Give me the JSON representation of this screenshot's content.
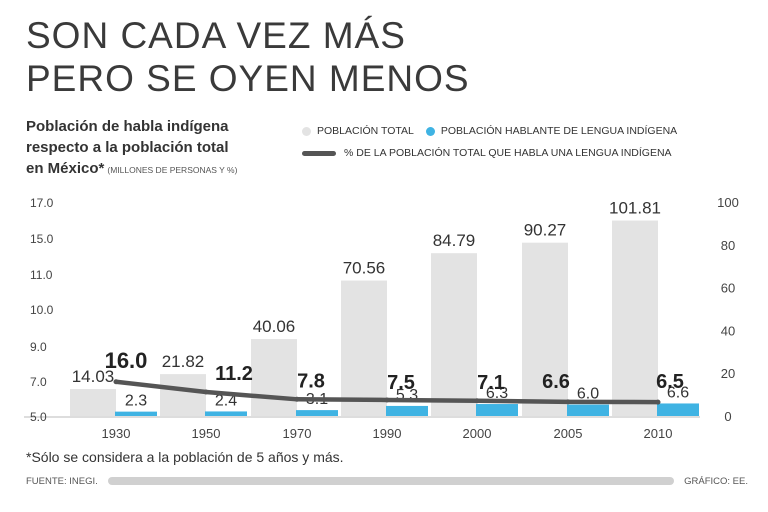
{
  "headline": [
    "SON CADA VEZ MÁS",
    "PERO SE OYEN MENOS"
  ],
  "subtitle": {
    "lines": [
      "Población de habla indígena",
      "respecto a la población total",
      "en México*"
    ],
    "units": "(MILLONES DE PERSONAS Y %)"
  },
  "legend": {
    "total": "POBLACIÓN TOTAL",
    "indigenous": "POBLACIÓN HABLANTE DE LENGUA INDÍGENA",
    "percent": "% DE LA POBLACIÓN TOTAL QUE HABLA UNA LENGUA INDÍGENA"
  },
  "colors": {
    "total": "#e3e3e3",
    "indigenous": "#3fb3e3",
    "line": "#555555",
    "axis": "#bbbbbb"
  },
  "chart_data": {
    "type": "bar",
    "categories": [
      "1930",
      "1950",
      "1970",
      "1990",
      "2000",
      "2005",
      "2010"
    ],
    "series": [
      {
        "name": "POBLACIÓN TOTAL",
        "values": [
          14.03,
          21.82,
          40.06,
          70.56,
          84.79,
          90.27,
          101.81
        ],
        "labels": [
          "14.03",
          "21.82",
          "40.06",
          "70.56",
          "84.79",
          "90.27",
          "101.81"
        ]
      },
      {
        "name": "POBLACIÓN HABLANTE DE LENGUA INDÍGENA",
        "values": [
          2.3,
          2.4,
          3.1,
          5.3,
          6.3,
          6.0,
          6.6
        ],
        "labels": [
          "2.3",
          "2.4",
          "3.1",
          "5.3",
          "6.3",
          "6.0",
          "6.6"
        ]
      },
      {
        "name": "% DE LA POBLACIÓN TOTAL QUE HABLA UNA LENGUA INDÍGENA",
        "type": "line",
        "axis": "right",
        "values": [
          16.0,
          11.2,
          7.8,
          7.5,
          7.1,
          6.6,
          6.5
        ],
        "labels": [
          "16.0",
          "11.2",
          "7.8",
          "7.5",
          "7.1",
          "6.6",
          "6.5"
        ]
      }
    ],
    "left_axis_ticks": [
      "17.0",
      "15.0",
      "11.0",
      "10.0",
      "9.0",
      "7.0",
      "5.0"
    ],
    "right_axis_ticks": [
      "100",
      "80",
      "60",
      "40",
      "20",
      "0"
    ],
    "right_ylim": [
      0,
      100
    ]
  },
  "footnote": "*Sólo se considera a la población de 5 años y más.",
  "source": "FUENTE: INEGI.",
  "credit": "GRÁFICO: EE."
}
